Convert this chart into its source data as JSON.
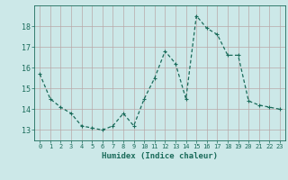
{
  "x": [
    0,
    1,
    2,
    3,
    4,
    5,
    6,
    7,
    8,
    9,
    10,
    11,
    12,
    13,
    14,
    15,
    16,
    17,
    18,
    19,
    20,
    21,
    22,
    23
  ],
  "y": [
    15.7,
    14.5,
    14.1,
    13.8,
    13.2,
    13.1,
    13.0,
    13.2,
    13.8,
    13.2,
    14.5,
    15.5,
    16.8,
    16.2,
    14.5,
    18.5,
    17.9,
    17.6,
    16.6,
    16.6,
    14.4,
    14.2,
    14.1,
    14.0
  ],
  "line_color": "#1a6b5a",
  "marker": "+",
  "marker_size": 3,
  "linewidth": 0.9,
  "xlabel": "Humidex (Indice chaleur)",
  "xlabel_fontsize": 6.5,
  "ylabel_ticks": [
    13,
    14,
    15,
    16,
    17,
    18
  ],
  "xlim": [
    -0.5,
    23.5
  ],
  "ylim": [
    12.5,
    19.0
  ],
  "xtick_labels": [
    "0",
    "1",
    "2",
    "3",
    "4",
    "5",
    "6",
    "7",
    "8",
    "9",
    "10",
    "11",
    "12",
    "13",
    "14",
    "15",
    "16",
    "17",
    "18",
    "19",
    "20",
    "21",
    "22",
    "23"
  ],
  "background_color": "#cce8e8",
  "grid_color": "#b8a8a8",
  "tick_color": "#1a6b5a",
  "label_color": "#1a6b5a",
  "tick_fontsize": 5.0,
  "ytick_fontsize": 6.0
}
